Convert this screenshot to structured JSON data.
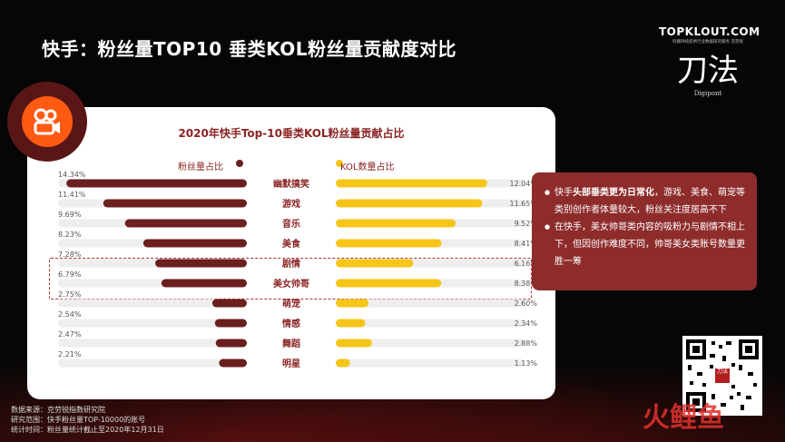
{
  "page": {
    "title": "快手：粉丝量TOP10 垂类KOL粉丝量贡献度对比",
    "brand": {
      "name": "TOPKLOUT.COM",
      "sub": "科播持续提供行业数据研究服务 克劳锐",
      "cn": "刀法",
      "en": "Digipont"
    },
    "watermark": "火鲤鱼",
    "qr_label": "刀法"
  },
  "chart_data": {
    "type": "bar",
    "title": "2020年快手Top-10垂类KOL粉丝量贡献占比",
    "categories": [
      "幽默搞笑",
      "游戏",
      "音乐",
      "美食",
      "剧情",
      "美女帅哥",
      "萌宠",
      "情感",
      "舞蹈",
      "明星"
    ],
    "series": [
      {
        "name": "粉丝量占比",
        "values": [
          14.34,
          11.41,
          9.69,
          8.23,
          7.28,
          6.79,
          2.75,
          2.54,
          2.47,
          2.21
        ],
        "color": "#6b1f1f",
        "direction": "left"
      },
      {
        "name": "KOL数量占比",
        "values": [
          12.04,
          11.65,
          9.52,
          8.41,
          6.16,
          8.38,
          2.6,
          2.34,
          2.88,
          1.13
        ],
        "color": "#f5c518",
        "direction": "right"
      }
    ],
    "left_labels": [
      "14.34%",
      "11.41%",
      "9.69%",
      "8.23%",
      "7.28%",
      "6.79%",
      "2.75%",
      "2.54%",
      "2.47%",
      "2.21%"
    ],
    "right_labels": [
      "12.04%",
      "11.65%",
      "9.52%",
      "8.41%",
      "6.16%",
      "8.38%",
      "2.60%",
      "2.34%",
      "2.88%",
      "1.13%"
    ],
    "highlighted": [
      "剧情",
      "美女帅哥"
    ],
    "track_color": "#eeeeee",
    "label_color": "#8b2323"
  },
  "notes": {
    "item1_pre": "快手",
    "item1_bold": "头部垂类更为日常化",
    "item1_post": "，游戏、美食、萌宠等类别创作者体量较大，粉丝关注度居高不下",
    "item2": "在快手，美女帅哥类内容的吸粉力与剧情不相上下，但因创作难度不同，帅哥美女类账号数量更胜一筹"
  },
  "source": {
    "line1": "数据来源：克劳锐指数研究院",
    "line2": "研究范围：快手粉丝量TOP-10000的账号",
    "line3": "统计时间：粉丝量统计截止至2020年12月31日"
  }
}
